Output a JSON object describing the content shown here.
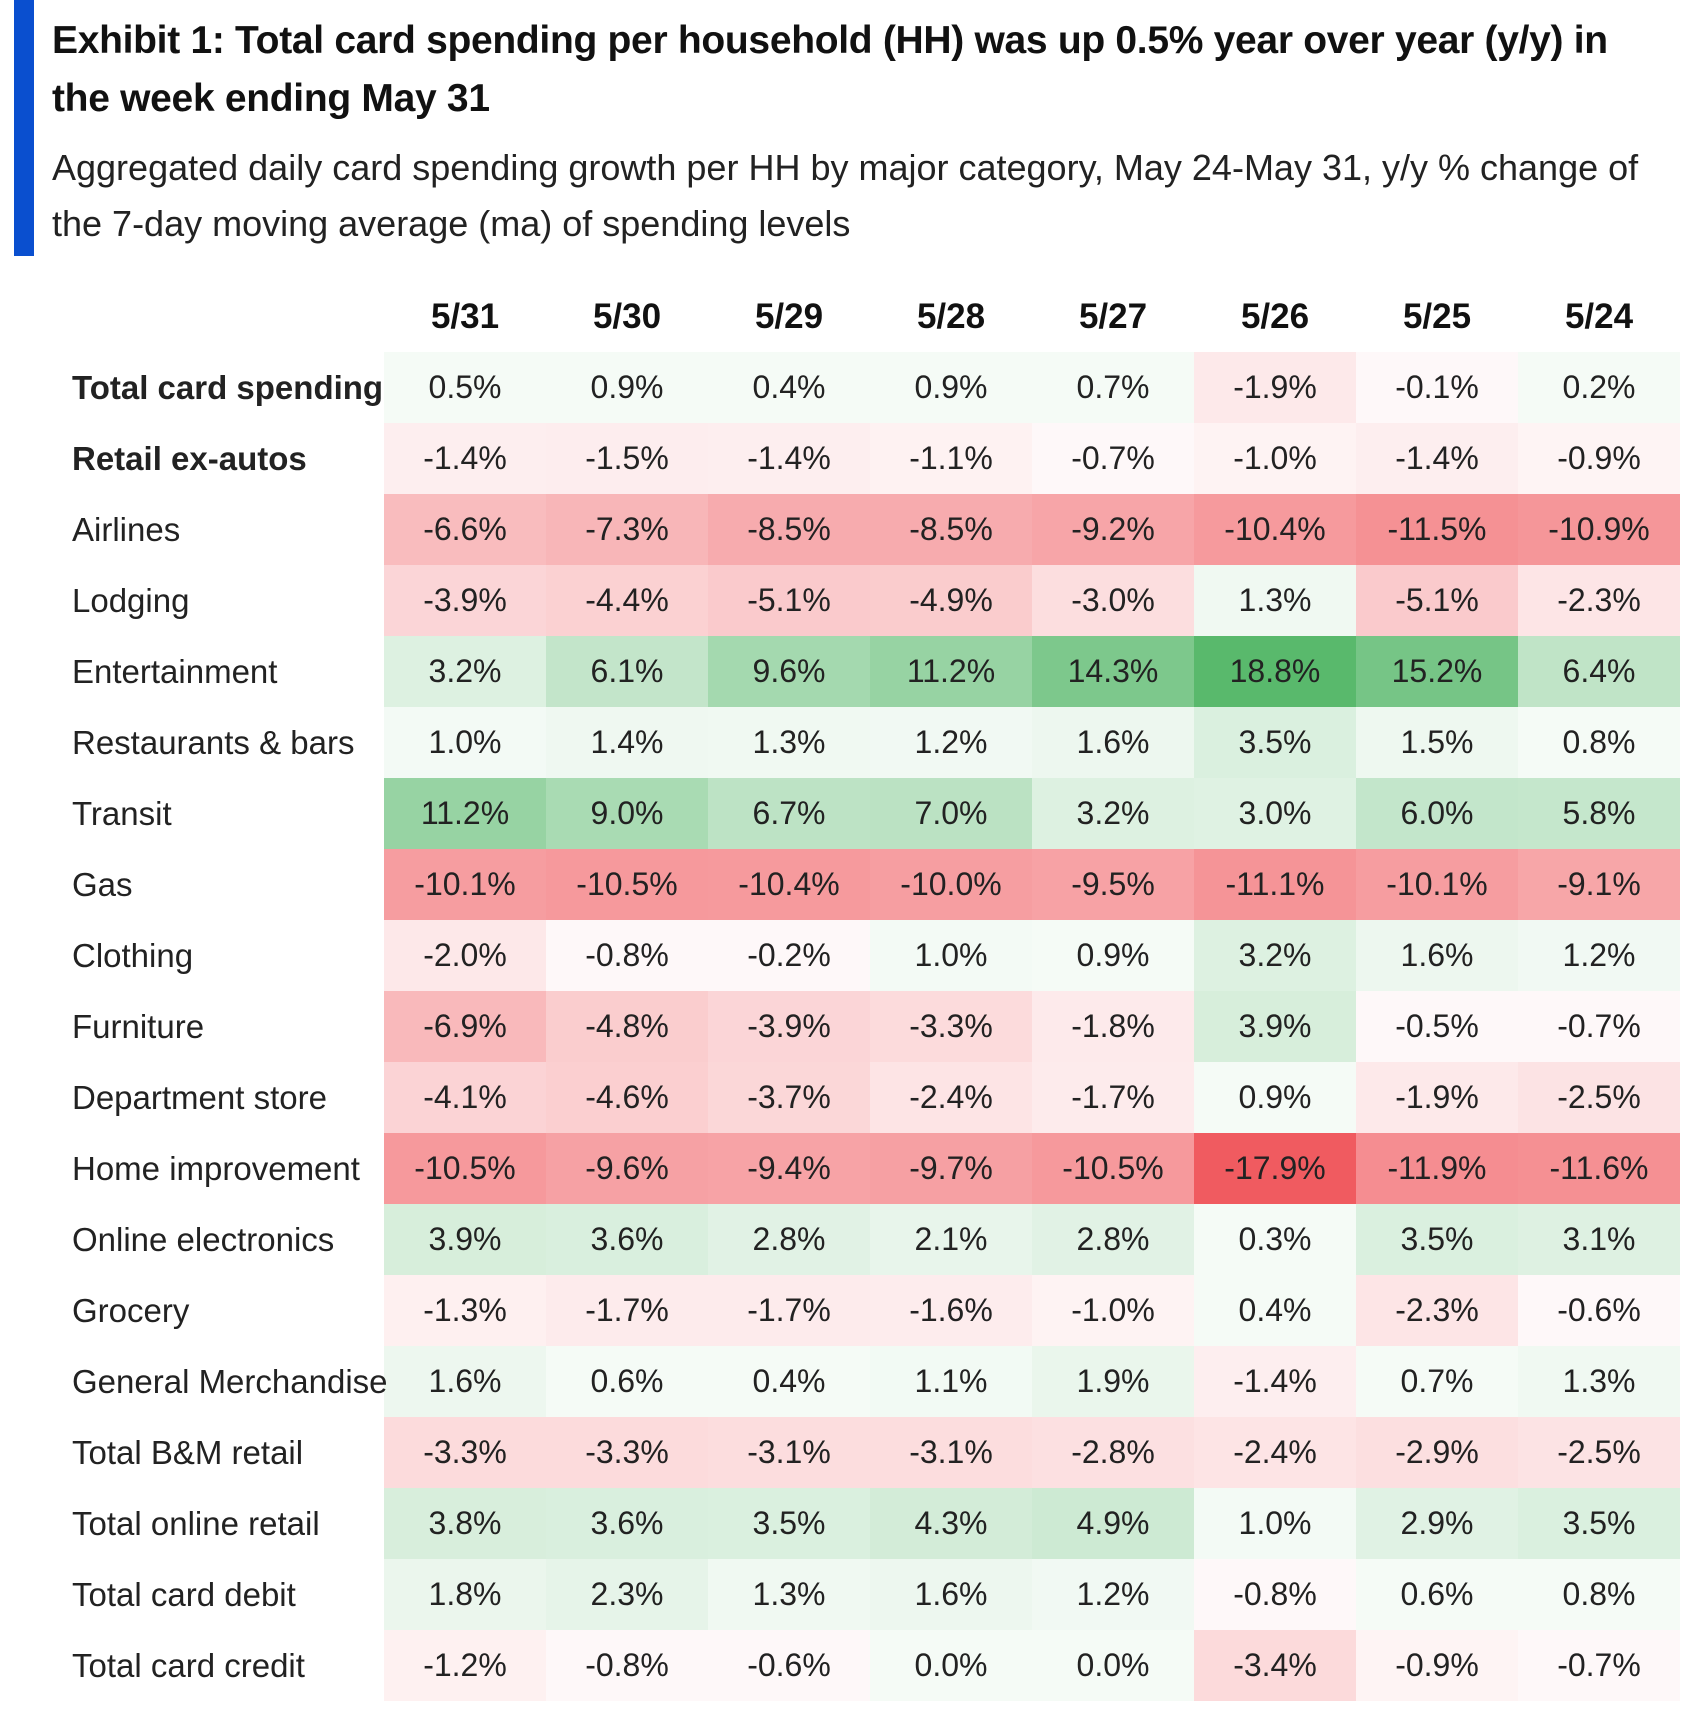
{
  "header": {
    "title": "Exhibit 1: Total card spending per household (HH) was up 0.5% year over year (y/y) in the week ending May 31",
    "subtitle": "Aggregated daily card spending growth per HH by major category, May 24-May 31, y/y % change of the 7-day moving average (ma) of spending levels",
    "accent_color": "#0a4fcf"
  },
  "chart_data": {
    "type": "heatmap",
    "title": "Exhibit 1: Total card spending per household (HH) was up 0.5% year over year (y/y) in the week ending May 31",
    "subtitle": "Aggregated daily card spending growth per HH by major category, May 24-May 31, y/y % change of the 7-day moving average (ma) of spending levels",
    "columns": [
      "5/31",
      "5/30",
      "5/29",
      "5/28",
      "5/27",
      "5/26",
      "5/25",
      "5/24"
    ],
    "unit": "%",
    "color_scale": {
      "negative": "#f05a5f",
      "zero": "#ffffff",
      "positive": "#57b86b",
      "min": -18,
      "max": 19
    },
    "rows": [
      {
        "label": "Total card spending",
        "bold": true,
        "values": [
          0.5,
          0.9,
          0.4,
          0.9,
          0.7,
          -1.9,
          -0.1,
          0.2
        ]
      },
      {
        "label": "Retail ex-autos",
        "bold": true,
        "values": [
          -1.4,
          -1.5,
          -1.4,
          -1.1,
          -0.7,
          -1.0,
          -1.4,
          -0.9
        ]
      },
      {
        "label": "Airlines",
        "bold": false,
        "values": [
          -6.6,
          -7.3,
          -8.5,
          -8.5,
          -9.2,
          -10.4,
          -11.5,
          -10.9
        ]
      },
      {
        "label": "Lodging",
        "bold": false,
        "values": [
          -3.9,
          -4.4,
          -5.1,
          -4.9,
          -3.0,
          1.3,
          -5.1,
          -2.3
        ]
      },
      {
        "label": "Entertainment",
        "bold": false,
        "values": [
          3.2,
          6.1,
          9.6,
          11.2,
          14.3,
          18.8,
          15.2,
          6.4
        ]
      },
      {
        "label": "Restaurants & bars",
        "bold": false,
        "values": [
          1.0,
          1.4,
          1.3,
          1.2,
          1.6,
          3.5,
          1.5,
          0.8
        ]
      },
      {
        "label": "Transit",
        "bold": false,
        "values": [
          11.2,
          9.0,
          6.7,
          7.0,
          3.2,
          3.0,
          6.0,
          5.8
        ]
      },
      {
        "label": "Gas",
        "bold": false,
        "values": [
          -10.1,
          -10.5,
          -10.4,
          -10.0,
          -9.5,
          -11.1,
          -10.1,
          -9.1
        ]
      },
      {
        "label": "Clothing",
        "bold": false,
        "values": [
          -2.0,
          -0.8,
          -0.2,
          1.0,
          0.9,
          3.2,
          1.6,
          1.2
        ]
      },
      {
        "label": "Furniture",
        "bold": false,
        "values": [
          -6.9,
          -4.8,
          -3.9,
          -3.3,
          -1.8,
          3.9,
          -0.5,
          -0.7
        ]
      },
      {
        "label": "Department store",
        "bold": false,
        "values": [
          -4.1,
          -4.6,
          -3.7,
          -2.4,
          -1.7,
          0.9,
          -1.9,
          -2.5
        ]
      },
      {
        "label": "Home improvement",
        "bold": false,
        "values": [
          -10.5,
          -9.6,
          -9.4,
          -9.7,
          -10.5,
          -17.9,
          -11.9,
          -11.6
        ]
      },
      {
        "label": "Online electronics",
        "bold": false,
        "values": [
          3.9,
          3.6,
          2.8,
          2.1,
          2.8,
          0.3,
          3.5,
          3.1
        ]
      },
      {
        "label": "Grocery",
        "bold": false,
        "values": [
          -1.3,
          -1.7,
          -1.7,
          -1.6,
          -1.0,
          0.4,
          -2.3,
          -0.6
        ]
      },
      {
        "label": "General Merchandise",
        "bold": false,
        "values": [
          1.6,
          0.6,
          0.4,
          1.1,
          1.9,
          -1.4,
          0.7,
          1.3
        ]
      },
      {
        "label": "Total B&M retail",
        "bold": false,
        "values": [
          -3.3,
          -3.3,
          -3.1,
          -3.1,
          -2.8,
          -2.4,
          -2.9,
          -2.5
        ]
      },
      {
        "label": "Total online retail",
        "bold": false,
        "values": [
          3.8,
          3.6,
          3.5,
          4.3,
          4.9,
          1.0,
          2.9,
          3.5
        ]
      },
      {
        "label": "Total card debit",
        "bold": false,
        "values": [
          1.8,
          2.3,
          1.3,
          1.6,
          1.2,
          -0.8,
          0.6,
          0.8
        ]
      },
      {
        "label": "Total card credit",
        "bold": false,
        "values": [
          -1.2,
          -0.8,
          -0.6,
          0.0,
          0.0,
          -3.4,
          -0.9,
          -0.7
        ]
      }
    ]
  }
}
